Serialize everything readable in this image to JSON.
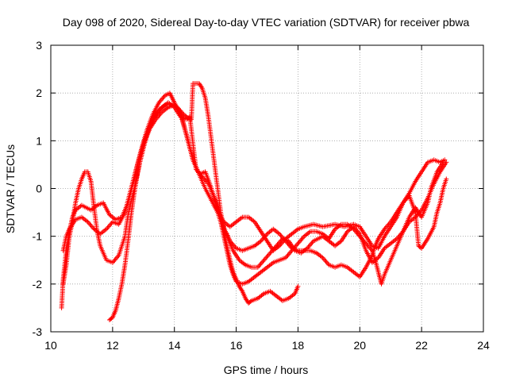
{
  "chart_data": {
    "type": "scatter",
    "title": "Day 098 of 2020, Sidereal Day-to-day VTEC variation (SDTVAR) for receiver pbwa",
    "xlabel": "GPS time / hours",
    "ylabel": "SDTVAR / TECUs",
    "xlim": [
      10,
      24
    ],
    "ylim": [
      -3,
      3
    ],
    "xticks": [
      10,
      12,
      14,
      16,
      18,
      20,
      22,
      24
    ],
    "yticks": [
      -3,
      -2,
      -1,
      0,
      1,
      2,
      3
    ],
    "grid": true,
    "marker": "+",
    "color": "#ff0000",
    "series": [
      {
        "name": "track-1",
        "points": [
          [
            10.35,
            -2.5
          ],
          [
            10.4,
            -1.9
          ],
          [
            10.5,
            -1.3
          ],
          [
            10.6,
            -0.9
          ],
          [
            10.7,
            -0.6
          ],
          [
            10.8,
            -0.45
          ],
          [
            11.0,
            -0.35
          ],
          [
            11.3,
            -0.45
          ],
          [
            11.5,
            -0.35
          ],
          [
            11.7,
            -0.3
          ],
          [
            11.9,
            -0.55
          ],
          [
            12.1,
            -0.65
          ],
          [
            12.3,
            -0.6
          ],
          [
            12.5,
            -0.3
          ],
          [
            12.7,
            0.2
          ],
          [
            12.9,
            0.75
          ],
          [
            13.1,
            1.2
          ],
          [
            13.3,
            1.55
          ],
          [
            13.5,
            1.8
          ],
          [
            13.7,
            1.95
          ],
          [
            13.85,
            2.0
          ],
          [
            14.0,
            1.8
          ],
          [
            14.2,
            1.55
          ],
          [
            14.4,
            1.1
          ],
          [
            14.6,
            0.6
          ],
          [
            14.8,
            0.3
          ],
          [
            15.0,
            0.35
          ],
          [
            15.2,
            0.0
          ],
          [
            15.4,
            -0.45
          ],
          [
            15.6,
            -0.7
          ],
          [
            15.8,
            -0.8
          ],
          [
            16.0,
            -0.7
          ],
          [
            16.2,
            -0.6
          ],
          [
            16.4,
            -0.6
          ],
          [
            16.6,
            -0.7
          ],
          [
            16.8,
            -0.9
          ],
          [
            17.0,
            -1.1
          ],
          [
            17.2,
            -1.3
          ],
          [
            17.4,
            -1.2
          ],
          [
            17.6,
            -1.05
          ],
          [
            17.8,
            -0.95
          ],
          [
            18.0,
            -0.85
          ],
          [
            18.2,
            -0.8
          ],
          [
            18.5,
            -0.75
          ],
          [
            18.8,
            -0.8
          ],
          [
            19.2,
            -0.75
          ],
          [
            19.5,
            -0.8
          ],
          [
            19.8,
            -0.75
          ],
          [
            20.0,
            -0.8
          ],
          [
            20.2,
            -1.0
          ],
          [
            20.4,
            -1.2
          ],
          [
            20.6,
            -1.25
          ],
          [
            20.8,
            -1.0
          ],
          [
            21.0,
            -0.8
          ],
          [
            21.2,
            -0.6
          ],
          [
            21.4,
            -0.3
          ],
          [
            21.6,
            -0.1
          ],
          [
            21.8,
            0.15
          ],
          [
            22.0,
            0.35
          ],
          [
            22.2,
            0.55
          ],
          [
            22.4,
            0.6
          ],
          [
            22.6,
            0.55
          ],
          [
            22.75,
            0.6
          ]
        ]
      },
      {
        "name": "track-2",
        "points": [
          [
            10.4,
            -1.3
          ],
          [
            10.5,
            -1.0
          ],
          [
            10.6,
            -0.85
          ],
          [
            10.8,
            -0.65
          ],
          [
            11.0,
            -0.6
          ],
          [
            11.2,
            -0.7
          ],
          [
            11.4,
            -0.85
          ],
          [
            11.6,
            -0.95
          ],
          [
            11.8,
            -0.85
          ],
          [
            12.0,
            -0.7
          ],
          [
            12.2,
            -0.75
          ],
          [
            12.4,
            -0.5
          ],
          [
            12.6,
            0.0
          ],
          [
            12.8,
            0.5
          ],
          [
            13.0,
            0.95
          ],
          [
            13.2,
            1.3
          ],
          [
            13.4,
            1.55
          ],
          [
            13.6,
            1.7
          ],
          [
            13.8,
            1.8
          ],
          [
            14.0,
            1.7
          ],
          [
            14.2,
            1.5
          ],
          [
            14.4,
            1.45
          ],
          [
            14.5,
            1.5
          ],
          [
            14.7,
            0.4
          ],
          [
            14.9,
            0.25
          ],
          [
            15.1,
            0.1
          ],
          [
            15.3,
            -0.2
          ],
          [
            15.5,
            -0.6
          ],
          [
            15.7,
            -1.0
          ],
          [
            15.9,
            -1.3
          ],
          [
            16.1,
            -1.5
          ],
          [
            16.3,
            -1.6
          ],
          [
            16.5,
            -1.65
          ],
          [
            16.7,
            -1.65
          ],
          [
            16.9,
            -1.5
          ],
          [
            17.1,
            -1.35
          ],
          [
            17.3,
            -1.2
          ],
          [
            17.5,
            -1.05
          ],
          [
            17.7,
            -1.1
          ],
          [
            17.9,
            -1.3
          ],
          [
            18.1,
            -1.35
          ],
          [
            18.3,
            -1.25
          ],
          [
            18.5,
            -1.1
          ],
          [
            18.8,
            -1.0
          ],
          [
            19.0,
            -1.1
          ],
          [
            19.2,
            -1.2
          ],
          [
            19.4,
            -1.1
          ],
          [
            19.6,
            -0.9
          ],
          [
            19.8,
            -0.8
          ],
          [
            20.0,
            -0.95
          ],
          [
            20.2,
            -1.3
          ],
          [
            20.4,
            -1.55
          ],
          [
            20.6,
            -1.45
          ],
          [
            20.8,
            -1.25
          ],
          [
            21.0,
            -1.15
          ],
          [
            21.2,
            -1.05
          ],
          [
            21.4,
            -0.9
          ],
          [
            21.6,
            -0.7
          ],
          [
            21.8,
            -0.6
          ],
          [
            22.0,
            -0.45
          ],
          [
            22.2,
            -0.2
          ],
          [
            22.4,
            0.1
          ],
          [
            22.6,
            0.35
          ],
          [
            22.8,
            0.55
          ]
        ]
      },
      {
        "name": "track-3",
        "points": [
          [
            10.4,
            -2.0
          ],
          [
            10.5,
            -1.6
          ],
          [
            10.6,
            -1.0
          ],
          [
            10.7,
            -0.7
          ],
          [
            10.8,
            -0.3
          ],
          [
            10.9,
            0.0
          ],
          [
            11.0,
            0.2
          ],
          [
            11.1,
            0.35
          ],
          [
            11.2,
            0.35
          ],
          [
            11.3,
            0.15
          ],
          [
            11.4,
            -0.4
          ],
          [
            11.5,
            -0.9
          ],
          [
            11.6,
            -1.2
          ],
          [
            11.8,
            -1.5
          ],
          [
            12.0,
            -1.55
          ],
          [
            12.2,
            -1.4
          ],
          [
            12.4,
            -1.0
          ],
          [
            12.5,
            -0.55
          ],
          [
            12.7,
            0.0
          ],
          [
            12.9,
            0.6
          ],
          [
            13.1,
            1.1
          ],
          [
            13.3,
            1.45
          ],
          [
            13.5,
            1.65
          ],
          [
            13.7,
            1.75
          ],
          [
            13.9,
            1.75
          ],
          [
            14.1,
            1.7
          ],
          [
            14.3,
            1.55
          ],
          [
            14.5,
            1.45
          ],
          [
            14.55,
            1.45
          ],
          [
            14.6,
            2.2
          ],
          [
            14.8,
            2.2
          ],
          [
            14.9,
            2.1
          ],
          [
            15.0,
            1.9
          ],
          [
            15.1,
            1.5
          ],
          [
            15.2,
            1.0
          ],
          [
            15.3,
            0.5
          ],
          [
            15.4,
            0.0
          ],
          [
            15.5,
            -0.5
          ],
          [
            15.6,
            -0.85
          ],
          [
            15.7,
            -0.95
          ],
          [
            15.8,
            -1.1
          ],
          [
            16.0,
            -1.25
          ],
          [
            16.2,
            -1.3
          ],
          [
            16.4,
            -1.25
          ],
          [
            16.6,
            -1.2
          ],
          [
            16.8,
            -1.1
          ],
          [
            17.0,
            -0.95
          ],
          [
            17.2,
            -0.85
          ],
          [
            17.4,
            -0.95
          ],
          [
            17.6,
            -1.1
          ],
          [
            17.8,
            -1.25
          ],
          [
            18.0,
            -1.3
          ],
          [
            18.2,
            -1.3
          ],
          [
            18.4,
            -1.3
          ],
          [
            18.6,
            -1.35
          ],
          [
            18.8,
            -1.45
          ],
          [
            19.0,
            -1.6
          ],
          [
            19.2,
            -1.65
          ],
          [
            19.4,
            -1.6
          ],
          [
            19.6,
            -1.65
          ],
          [
            19.8,
            -1.75
          ],
          [
            20.0,
            -1.85
          ],
          [
            20.2,
            -1.65
          ],
          [
            20.4,
            -1.4
          ],
          [
            20.5,
            -1.2
          ],
          [
            20.6,
            -1.05
          ],
          [
            20.8,
            -0.85
          ],
          [
            21.0,
            -0.7
          ],
          [
            21.2,
            -0.5
          ],
          [
            21.4,
            -0.3
          ],
          [
            21.6,
            -0.15
          ],
          [
            21.8,
            -0.5
          ],
          [
            21.9,
            -1.2
          ],
          [
            22.0,
            -1.25
          ],
          [
            22.2,
            -1.05
          ],
          [
            22.4,
            -0.8
          ],
          [
            22.5,
            -0.5
          ],
          [
            22.6,
            -0.3
          ],
          [
            22.7,
            0.0
          ],
          [
            22.8,
            0.2
          ]
        ]
      },
      {
        "name": "track-4",
        "points": [
          [
            11.9,
            -2.75
          ],
          [
            12.0,
            -2.7
          ],
          [
            12.1,
            -2.55
          ],
          [
            12.2,
            -2.3
          ],
          [
            12.3,
            -2.0
          ],
          [
            12.4,
            -1.6
          ],
          [
            12.5,
            -1.1
          ],
          [
            12.6,
            -0.55
          ],
          [
            12.7,
            -0.1
          ],
          [
            12.8,
            0.3
          ],
          [
            12.9,
            0.6
          ],
          [
            13.0,
            0.9
          ],
          [
            13.2,
            1.25
          ],
          [
            13.4,
            1.45
          ],
          [
            13.6,
            1.6
          ],
          [
            13.8,
            1.7
          ],
          [
            14.0,
            1.75
          ],
          [
            14.2,
            1.6
          ],
          [
            14.4,
            1.1
          ],
          [
            14.6,
            0.6
          ],
          [
            14.8,
            0.3
          ],
          [
            15.0,
            0.0
          ],
          [
            15.2,
            -0.25
          ],
          [
            15.4,
            -0.5
          ],
          [
            15.5,
            -0.7
          ],
          [
            15.6,
            -1.0
          ],
          [
            15.7,
            -1.3
          ],
          [
            15.8,
            -1.6
          ],
          [
            15.9,
            -1.8
          ],
          [
            16.0,
            -1.95
          ],
          [
            16.2,
            -2.0
          ],
          [
            16.4,
            -1.95
          ],
          [
            16.6,
            -1.85
          ],
          [
            16.8,
            -1.75
          ],
          [
            17.0,
            -1.65
          ],
          [
            17.2,
            -1.55
          ],
          [
            17.4,
            -1.5
          ],
          [
            17.6,
            -1.45
          ],
          [
            17.8,
            -1.3
          ],
          [
            18.0,
            -1.15
          ],
          [
            18.2,
            -1.0
          ],
          [
            18.4,
            -0.9
          ],
          [
            18.6,
            -0.9
          ],
          [
            18.8,
            -0.95
          ],
          [
            19.0,
            -1.05
          ],
          [
            19.2,
            -0.85
          ],
          [
            19.4,
            -0.75
          ],
          [
            19.6,
            -0.75
          ],
          [
            19.8,
            -0.85
          ],
          [
            20.0,
            -1.0
          ],
          [
            20.2,
            -1.15
          ],
          [
            20.4,
            -1.3
          ],
          [
            20.5,
            -1.5
          ],
          [
            20.6,
            -1.75
          ],
          [
            20.7,
            -2.0
          ],
          [
            20.8,
            -1.8
          ],
          [
            21.0,
            -1.5
          ],
          [
            21.2,
            -1.2
          ],
          [
            21.4,
            -0.9
          ],
          [
            21.6,
            -0.6
          ],
          [
            21.8,
            -0.4
          ],
          [
            22.0,
            -0.6
          ],
          [
            22.2,
            -0.3
          ],
          [
            22.3,
            0.0
          ],
          [
            22.5,
            0.35
          ],
          [
            22.7,
            0.55
          ]
        ]
      },
      {
        "name": "track-5",
        "points": [
          [
            15.5,
            -0.6
          ],
          [
            15.6,
            -0.9
          ],
          [
            15.7,
            -1.2
          ],
          [
            15.8,
            -1.5
          ],
          [
            15.9,
            -1.75
          ],
          [
            16.0,
            -1.9
          ],
          [
            16.1,
            -2.05
          ],
          [
            16.2,
            -2.15
          ],
          [
            16.3,
            -2.3
          ],
          [
            16.4,
            -2.4
          ],
          [
            16.5,
            -2.35
          ],
          [
            16.7,
            -2.3
          ],
          [
            16.9,
            -2.2
          ],
          [
            17.1,
            -2.15
          ],
          [
            17.3,
            -2.25
          ],
          [
            17.5,
            -2.35
          ],
          [
            17.7,
            -2.3
          ],
          [
            17.9,
            -2.2
          ],
          [
            18.0,
            -2.05
          ]
        ]
      }
    ]
  }
}
